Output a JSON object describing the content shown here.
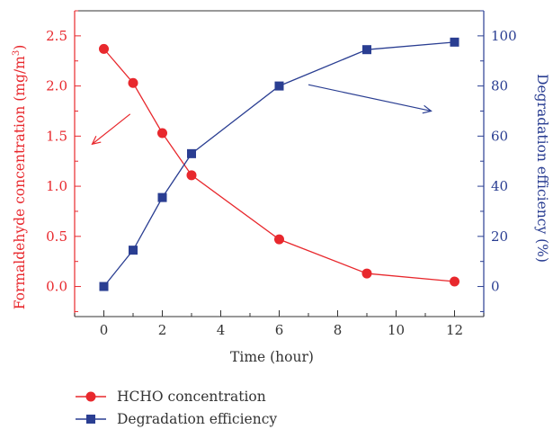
{
  "chart_data": {
    "type": "line",
    "xlabel": "Time (hour)",
    "ylabel_left": "Formaldehyde concentration (mg/m",
    "ylabel_left_sup": "3",
    "ylabel_left_close": ")",
    "ylabel_right": "Degradation efficiency (%)",
    "xlim": [
      -1,
      13
    ],
    "ylim_left": [
      -0.3,
      2.75
    ],
    "ylim_right": [
      -12,
      110
    ],
    "x_ticks": [
      0,
      2,
      4,
      6,
      8,
      10,
      12
    ],
    "x_tick_labels": [
      "0",
      "2",
      "4",
      "6",
      "8",
      "10",
      "12"
    ],
    "y_left_ticks": [
      0,
      0.5,
      1.0,
      1.5,
      2.0,
      2.5
    ],
    "y_left_tick_labels": [
      "0.0",
      "0.5",
      "1.0",
      "1.5",
      "2.0",
      "2.5"
    ],
    "y_right_ticks": [
      0,
      20,
      40,
      60,
      80,
      100
    ],
    "y_right_tick_labels": [
      "0",
      "20",
      "40",
      "60",
      "80",
      "100"
    ],
    "grid": false,
    "legend_position": "bottom-left",
    "series": [
      {
        "name": "HCHO concentration",
        "axis": "left",
        "color": "#e8282d",
        "marker": "circle",
        "x": [
          0,
          1,
          2,
          3,
          6,
          9,
          12
        ],
        "values": [
          2.37,
          2.03,
          1.53,
          1.11,
          0.47,
          0.13,
          0.05
        ]
      },
      {
        "name": "Degradation efficiency",
        "axis": "right",
        "color": "#2a3e92",
        "marker": "square",
        "x": [
          0,
          1,
          2,
          3,
          6,
          9,
          12
        ],
        "values": [
          0,
          14.5,
          35.5,
          53,
          80,
          94.5,
          97.5
        ]
      }
    ],
    "colors": {
      "left_axis": "#e8282d",
      "right_axis": "#2a3e92",
      "bottom_axis": "#333333"
    }
  }
}
